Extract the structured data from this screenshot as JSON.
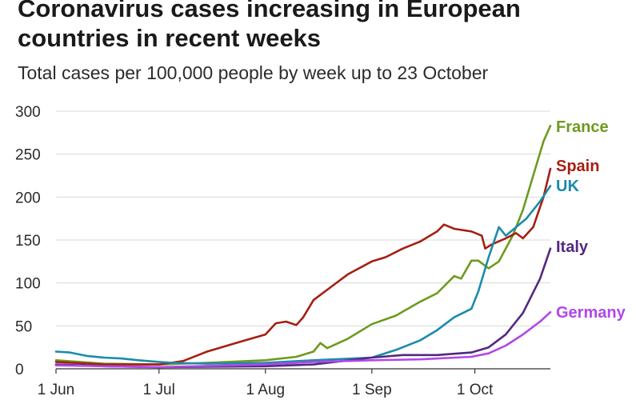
{
  "chart_data": {
    "type": "line",
    "title": "Coronavirus cases increasing in European countries in recent weeks",
    "subtitle": "Total cases per 100,000 people by week up to 23 October",
    "xlabel": "",
    "ylabel": "",
    "ylim": [
      0,
      300
    ],
    "xlim": [
      "2020-06-01",
      "2020-10-23"
    ],
    "x_ticks": [
      {
        "date": "2020-06-01",
        "label": "1 Jun"
      },
      {
        "date": "2020-07-01",
        "label": "1 Jul"
      },
      {
        "date": "2020-08-01",
        "label": "1 Aug"
      },
      {
        "date": "2020-09-01",
        "label": "1 Sep"
      },
      {
        "date": "2020-10-01",
        "label": "1 Oct"
      }
    ],
    "y_ticks": [
      0,
      50,
      100,
      150,
      200,
      250,
      300
    ],
    "grid": "horizontal",
    "legend": "direct labels at line ends (right)",
    "series": [
      {
        "name": "France",
        "color": "#6e9a1f",
        "points": [
          [
            "2020-06-01",
            10
          ],
          [
            "2020-06-15",
            6
          ],
          [
            "2020-07-01",
            5
          ],
          [
            "2020-07-15",
            7
          ],
          [
            "2020-08-01",
            10
          ],
          [
            "2020-08-10",
            14
          ],
          [
            "2020-08-15",
            20
          ],
          [
            "2020-08-17",
            30
          ],
          [
            "2020-08-19",
            24
          ],
          [
            "2020-08-25",
            35
          ],
          [
            "2020-09-01",
            52
          ],
          [
            "2020-09-08",
            62
          ],
          [
            "2020-09-15",
            78
          ],
          [
            "2020-09-20",
            88
          ],
          [
            "2020-09-25",
            108
          ],
          [
            "2020-09-27",
            105
          ],
          [
            "2020-09-30",
            126
          ],
          [
            "2020-10-02",
            126
          ],
          [
            "2020-10-05",
            117
          ],
          [
            "2020-10-08",
            125
          ],
          [
            "2020-10-12",
            155
          ],
          [
            "2020-10-15",
            185
          ],
          [
            "2020-10-18",
            225
          ],
          [
            "2020-10-21",
            265
          ],
          [
            "2020-10-23",
            283
          ]
        ]
      },
      {
        "name": "Spain",
        "color": "#a51f12",
        "points": [
          [
            "2020-06-01",
            8
          ],
          [
            "2020-06-15",
            5
          ],
          [
            "2020-07-01",
            5
          ],
          [
            "2020-07-08",
            9
          ],
          [
            "2020-07-15",
            20
          ],
          [
            "2020-07-25",
            32
          ],
          [
            "2020-08-01",
            40
          ],
          [
            "2020-08-04",
            53
          ],
          [
            "2020-08-07",
            55
          ],
          [
            "2020-08-10",
            51
          ],
          [
            "2020-08-12",
            60
          ],
          [
            "2020-08-15",
            80
          ],
          [
            "2020-08-20",
            95
          ],
          [
            "2020-08-25",
            110
          ],
          [
            "2020-09-01",
            125
          ],
          [
            "2020-09-05",
            130
          ],
          [
            "2020-09-10",
            140
          ],
          [
            "2020-09-15",
            148
          ],
          [
            "2020-09-20",
            160
          ],
          [
            "2020-09-22",
            168
          ],
          [
            "2020-09-25",
            163
          ],
          [
            "2020-09-30",
            160
          ],
          [
            "2020-10-03",
            155
          ],
          [
            "2020-10-04",
            140
          ],
          [
            "2020-10-06",
            145
          ],
          [
            "2020-10-10",
            152
          ],
          [
            "2020-10-13",
            158
          ],
          [
            "2020-10-15",
            152
          ],
          [
            "2020-10-18",
            165
          ],
          [
            "2020-10-21",
            200
          ],
          [
            "2020-10-23",
            233
          ]
        ]
      },
      {
        "name": "UK",
        "color": "#1b8bab",
        "points": [
          [
            "2020-06-01",
            20
          ],
          [
            "2020-06-05",
            19
          ],
          [
            "2020-06-10",
            15
          ],
          [
            "2020-06-15",
            13
          ],
          [
            "2020-06-20",
            12
          ],
          [
            "2020-06-25",
            10
          ],
          [
            "2020-07-01",
            8
          ],
          [
            "2020-07-05",
            7
          ],
          [
            "2020-07-15",
            6
          ],
          [
            "2020-08-01",
            7
          ],
          [
            "2020-08-15",
            10
          ],
          [
            "2020-09-01",
            13
          ],
          [
            "2020-09-08",
            22
          ],
          [
            "2020-09-15",
            33
          ],
          [
            "2020-09-20",
            45
          ],
          [
            "2020-09-25",
            60
          ],
          [
            "2020-09-30",
            70
          ],
          [
            "2020-10-02",
            90
          ],
          [
            "2020-10-05",
            130
          ],
          [
            "2020-10-08",
            165
          ],
          [
            "2020-10-10",
            155
          ],
          [
            "2020-10-13",
            165
          ],
          [
            "2020-10-16",
            175
          ],
          [
            "2020-10-20",
            195
          ],
          [
            "2020-10-23",
            213
          ]
        ]
      },
      {
        "name": "Italy",
        "color": "#53297f",
        "points": [
          [
            "2020-06-01",
            5
          ],
          [
            "2020-06-15",
            3
          ],
          [
            "2020-07-01",
            2
          ],
          [
            "2020-08-01",
            3
          ],
          [
            "2020-08-15",
            5
          ],
          [
            "2020-09-01",
            13
          ],
          [
            "2020-09-10",
            16
          ],
          [
            "2020-09-20",
            16
          ],
          [
            "2020-09-30",
            19
          ],
          [
            "2020-10-05",
            25
          ],
          [
            "2020-10-10",
            40
          ],
          [
            "2020-10-15",
            65
          ],
          [
            "2020-10-20",
            105
          ],
          [
            "2020-10-23",
            140
          ]
        ]
      },
      {
        "name": "Germany",
        "color": "#b247e8",
        "points": [
          [
            "2020-06-01",
            4
          ],
          [
            "2020-06-15",
            3
          ],
          [
            "2020-07-01",
            2
          ],
          [
            "2020-08-01",
            5
          ],
          [
            "2020-08-15",
            8
          ],
          [
            "2020-09-01",
            10
          ],
          [
            "2020-09-15",
            11
          ],
          [
            "2020-09-30",
            14
          ],
          [
            "2020-10-05",
            18
          ],
          [
            "2020-10-10",
            27
          ],
          [
            "2020-10-15",
            40
          ],
          [
            "2020-10-20",
            55
          ],
          [
            "2020-10-23",
            66
          ]
        ]
      }
    ]
  }
}
